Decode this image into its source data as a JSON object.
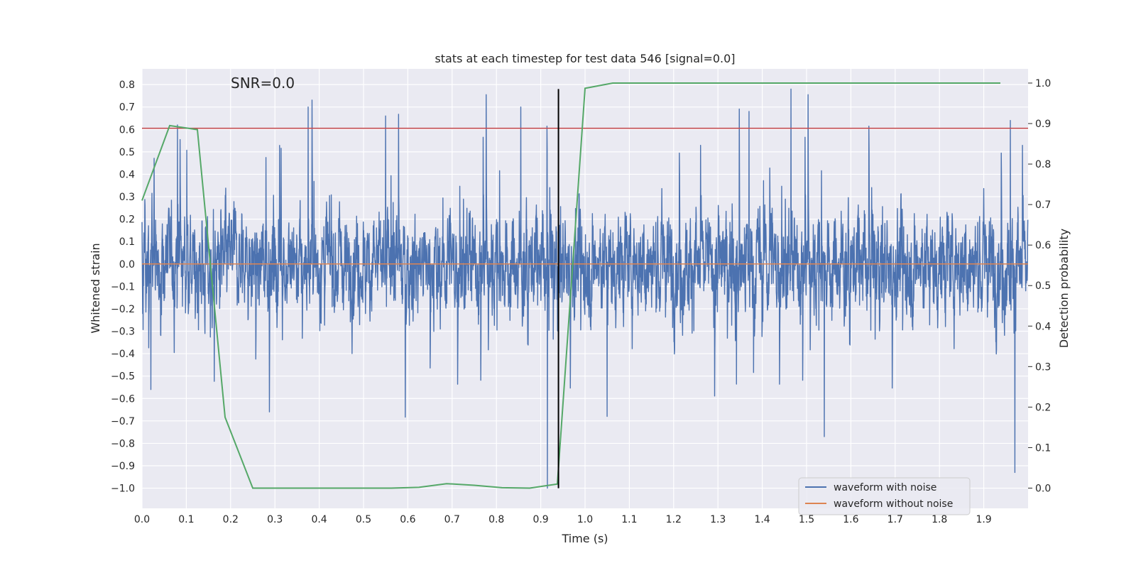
{
  "chart_data": {
    "type": "line",
    "title": "stats at each timestep for test data 546 [signal=0.0]",
    "annotation": "SNR=0.0",
    "xlabel": "Time (s)",
    "ylabel": "Whitened strain",
    "y2label": "Detection probability",
    "xlim": [
      0.0,
      2.0
    ],
    "ylim": [
      -1.09,
      0.87
    ],
    "y2lim": [
      -0.05,
      1.035
    ],
    "xticks": [
      0.0,
      0.1,
      0.2,
      0.3,
      0.4,
      0.5,
      0.6,
      0.7,
      0.8,
      0.9,
      1.0,
      1.1,
      1.2,
      1.3,
      1.4,
      1.5,
      1.6,
      1.7,
      1.8,
      1.9
    ],
    "xtick_labels": [
      "0.0",
      "0.1",
      "0.2",
      "0.3",
      "0.4",
      "0.5",
      "0.6",
      "0.7",
      "0.8",
      "0.9",
      "1.0",
      "1.1",
      "1.2",
      "1.3",
      "1.4",
      "1.5",
      "1.6",
      "1.7",
      "1.8",
      "1.9"
    ],
    "yticks": [
      0.8,
      0.7,
      0.6,
      0.5,
      0.4,
      0.3,
      0.2,
      0.1,
      0.0,
      -0.1,
      -0.2,
      -0.3,
      -0.4,
      -0.5,
      -0.6,
      -0.7,
      -0.8,
      -0.9,
      -1.0
    ],
    "ytick_labels": [
      "0.8",
      "0.7",
      "0.6",
      "0.5",
      "0.4",
      "0.3",
      "0.2",
      "0.1",
      "0.0",
      "−0.1",
      "−0.2",
      "−0.3",
      "−0.4",
      "−0.5",
      "−0.6",
      "−0.7",
      "−0.8",
      "−0.9",
      "−1.0"
    ],
    "y2ticks": [
      1.0,
      0.9,
      0.8,
      0.7,
      0.6,
      0.5,
      0.4,
      0.3,
      0.2,
      0.1,
      0.0
    ],
    "y2tick_labels": [
      "1.0",
      "0.9",
      "0.8",
      "0.7",
      "0.6",
      "0.5",
      "0.4",
      "0.3",
      "0.2",
      "0.1",
      "0.0"
    ],
    "grid": true,
    "legend_position": "bottom-right",
    "series": [
      {
        "name": "waveform with noise",
        "color": "#4c72b0",
        "kind": "noise",
        "sample_rate": 2048,
        "amplitude_range": [
          -1.0,
          0.78
        ],
        "notable_peaks": [
          {
            "x": 0.08,
            "y": 0.62
          },
          {
            "x": 0.375,
            "y": 0.7
          },
          {
            "x": 0.55,
            "y": 0.66
          },
          {
            "x": 0.855,
            "y": 0.7
          },
          {
            "x": 1.37,
            "y": 0.68
          },
          {
            "x": 1.465,
            "y": 0.78
          },
          {
            "x": 1.96,
            "y": 0.64
          },
          {
            "x": 0.915,
            "y": -1.0
          },
          {
            "x": 1.54,
            "y": -0.77
          },
          {
            "x": 1.97,
            "y": -0.93
          },
          {
            "x": 0.02,
            "y": -0.56
          },
          {
            "x": 1.05,
            "y": -0.68
          }
        ]
      },
      {
        "name": "waveform without noise",
        "color": "#dd8452",
        "kind": "constant",
        "value": 0.0
      },
      {
        "name": "threshold",
        "color": "#c44e52",
        "axis": "y",
        "kind": "hline",
        "value": 0.605
      },
      {
        "name": "detection probability",
        "color": "#55a868",
        "axis": "y2",
        "x": [
          0.0,
          0.0625,
          0.125,
          0.1875,
          0.25,
          0.3125,
          0.375,
          0.4375,
          0.5,
          0.5625,
          0.625,
          0.6875,
          0.75,
          0.8125,
          0.875,
          0.9375,
          1.0,
          1.0625,
          1.125,
          1.1875,
          1.25,
          1.3125,
          1.375,
          1.4375,
          1.5,
          1.5625,
          1.625,
          1.6875,
          1.75,
          1.8125,
          1.875,
          1.9375
        ],
        "values": [
          0.71,
          0.895,
          0.885,
          0.175,
          0.0,
          0.0,
          0.0,
          0.0,
          0.0,
          0.0,
          0.002,
          0.011,
          0.007,
          0.001,
          0.0,
          0.01,
          0.987,
          1.0,
          1.0,
          1.0,
          1.0,
          1.0,
          1.0,
          1.0,
          1.0,
          1.0,
          1.0,
          1.0,
          1.0,
          1.0,
          1.0,
          1.0
        ]
      },
      {
        "name": "marker",
        "color": "#000000",
        "kind": "vline",
        "x": 0.94,
        "y_range": [
          -1.0,
          0.78
        ]
      }
    ],
    "legend": [
      {
        "label": "waveform with noise",
        "color": "#4c72b0"
      },
      {
        "label": "waveform without noise",
        "color": "#dd8452"
      }
    ]
  }
}
